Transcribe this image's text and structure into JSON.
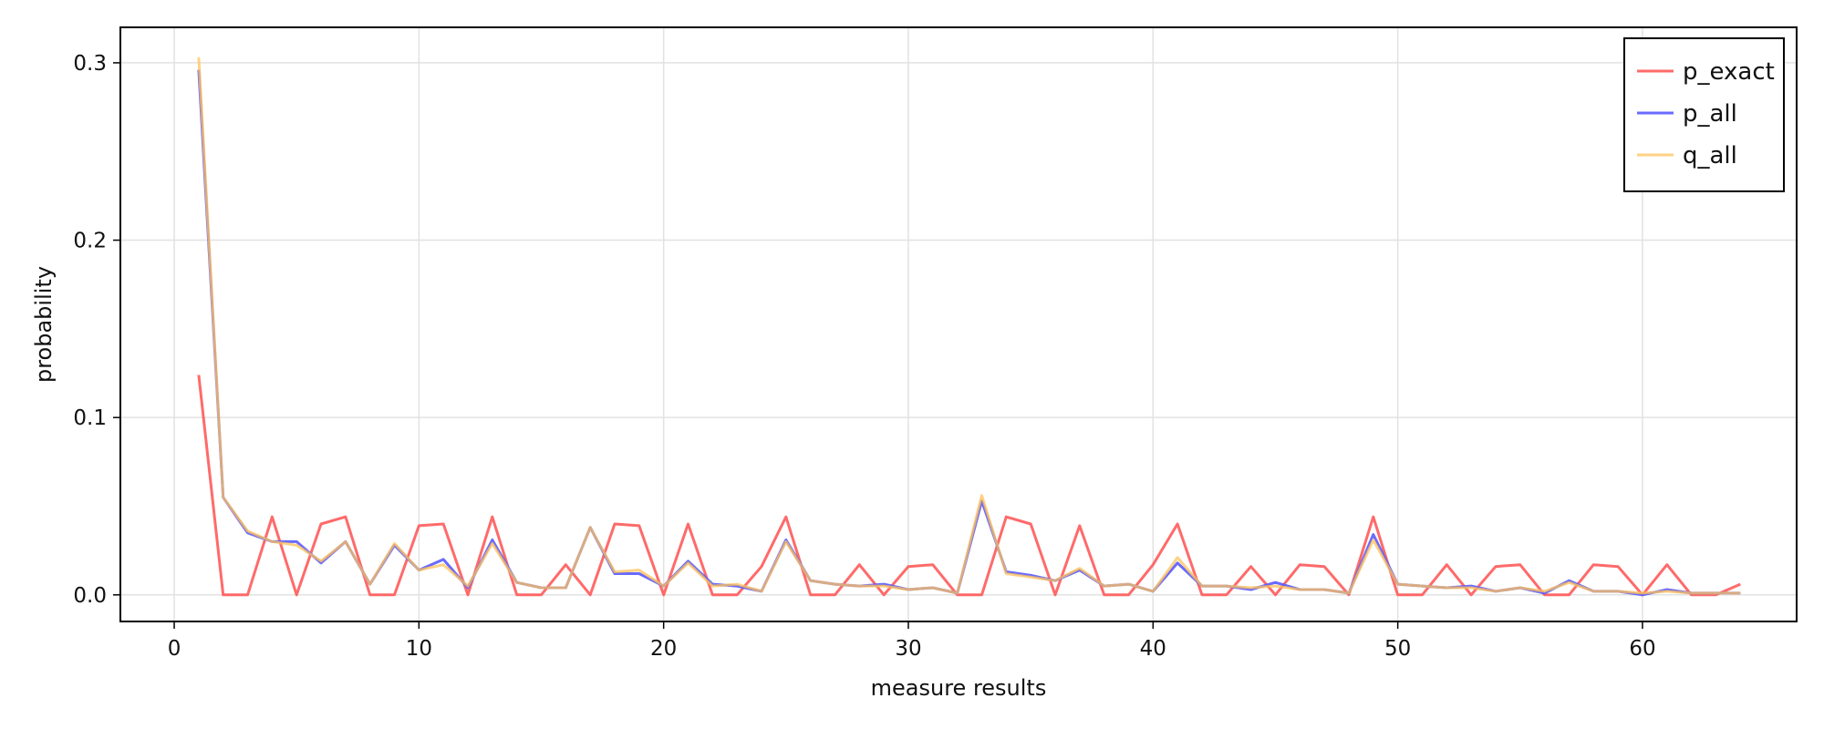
{
  "chart_data": {
    "type": "line",
    "title": "",
    "xlabel": "measure results",
    "ylabel": "probability",
    "xlim": [
      -2.2,
      66.3
    ],
    "ylim": [
      -0.015,
      0.32
    ],
    "xticks": [
      0,
      10,
      20,
      30,
      40,
      50,
      60
    ],
    "yticks": [
      0.0,
      0.1,
      0.2,
      0.3
    ],
    "ytick_labels": [
      "0.0",
      "0.1",
      "0.2",
      "0.3"
    ],
    "grid": true,
    "legend_position": "top-right",
    "series": [
      {
        "name": "p_exact",
        "color": "#ff5a5a",
        "opacity": 0.9,
        "x": [
          1,
          2,
          3,
          4,
          5,
          6,
          7,
          8,
          9,
          10,
          11,
          12,
          13,
          14,
          15,
          16,
          17,
          18,
          19,
          20,
          21,
          22,
          23,
          24,
          25,
          26,
          27,
          28,
          29,
          30,
          31,
          32,
          33,
          34,
          35,
          36,
          37,
          38,
          39,
          40,
          41,
          42,
          43,
          44,
          45,
          46,
          47,
          48,
          49,
          50,
          51,
          52,
          53,
          54,
          55,
          56,
          57,
          58,
          59,
          60,
          61,
          62,
          63,
          64
        ],
        "values": [
          0.124,
          0.0,
          0.0,
          0.044,
          0.0,
          0.04,
          0.044,
          0.0,
          0.0,
          0.039,
          0.04,
          0.0,
          0.044,
          0.0,
          0.0,
          0.017,
          0.0,
          0.04,
          0.039,
          0.0,
          0.04,
          0.0,
          0.0,
          0.016,
          0.044,
          0.0,
          0.0,
          0.017,
          0.0,
          0.016,
          0.017,
          0.0,
          0.0,
          0.044,
          0.04,
          0.0,
          0.039,
          0.0,
          0.0,
          0.017,
          0.04,
          0.0,
          0.0,
          0.016,
          0.0,
          0.017,
          0.016,
          0.0,
          0.044,
          0.0,
          0.0,
          0.017,
          0.0,
          0.016,
          0.017,
          0.0,
          0.0,
          0.017,
          0.016,
          0.0,
          0.017,
          0.0,
          0.0,
          0.006
        ]
      },
      {
        "name": "p_all",
        "color": "#5a5aff",
        "opacity": 0.9,
        "x": [
          1,
          2,
          3,
          4,
          5,
          6,
          7,
          8,
          9,
          10,
          11,
          12,
          13,
          14,
          15,
          16,
          17,
          18,
          19,
          20,
          21,
          22,
          23,
          24,
          25,
          26,
          27,
          28,
          29,
          30,
          31,
          32,
          33,
          34,
          35,
          36,
          37,
          38,
          39,
          40,
          41,
          42,
          43,
          44,
          45,
          46,
          47,
          48,
          49,
          50,
          51,
          52,
          53,
          54,
          55,
          56,
          57,
          58,
          59,
          60,
          61,
          62,
          63,
          64
        ],
        "values": [
          0.296,
          0.055,
          0.035,
          0.03,
          0.03,
          0.018,
          0.03,
          0.006,
          0.028,
          0.014,
          0.02,
          0.004,
          0.031,
          0.007,
          0.004,
          0.004,
          0.038,
          0.012,
          0.012,
          0.005,
          0.019,
          0.006,
          0.005,
          0.002,
          0.031,
          0.008,
          0.006,
          0.005,
          0.006,
          0.003,
          0.004,
          0.001,
          0.053,
          0.013,
          0.011,
          0.008,
          0.014,
          0.005,
          0.006,
          0.002,
          0.018,
          0.005,
          0.005,
          0.003,
          0.007,
          0.003,
          0.003,
          0.001,
          0.034,
          0.006,
          0.005,
          0.004,
          0.005,
          0.002,
          0.004,
          0.001,
          0.008,
          0.002,
          0.002,
          0.0,
          0.003,
          0.001,
          0.001,
          0.001
        ]
      },
      {
        "name": "q_all",
        "color": "#ffc25a",
        "opacity": 0.75,
        "x": [
          1,
          2,
          3,
          4,
          5,
          6,
          7,
          8,
          9,
          10,
          11,
          12,
          13,
          14,
          15,
          16,
          17,
          18,
          19,
          20,
          21,
          22,
          23,
          24,
          25,
          26,
          27,
          28,
          29,
          30,
          31,
          32,
          33,
          34,
          35,
          36,
          37,
          38,
          39,
          40,
          41,
          42,
          43,
          44,
          45,
          46,
          47,
          48,
          49,
          50,
          51,
          52,
          53,
          54,
          55,
          56,
          57,
          58,
          59,
          60,
          61,
          62,
          63,
          64
        ],
        "values": [
          0.303,
          0.055,
          0.036,
          0.03,
          0.028,
          0.019,
          0.03,
          0.006,
          0.029,
          0.014,
          0.017,
          0.005,
          0.029,
          0.007,
          0.004,
          0.004,
          0.038,
          0.013,
          0.014,
          0.005,
          0.018,
          0.005,
          0.006,
          0.002,
          0.03,
          0.008,
          0.006,
          0.005,
          0.005,
          0.003,
          0.004,
          0.001,
          0.056,
          0.012,
          0.01,
          0.008,
          0.015,
          0.005,
          0.006,
          0.002,
          0.021,
          0.005,
          0.005,
          0.004,
          0.005,
          0.003,
          0.003,
          0.001,
          0.031,
          0.006,
          0.005,
          0.004,
          0.004,
          0.002,
          0.004,
          0.002,
          0.007,
          0.002,
          0.002,
          0.001,
          0.002,
          0.001,
          0.001,
          0.001
        ]
      }
    ]
  }
}
